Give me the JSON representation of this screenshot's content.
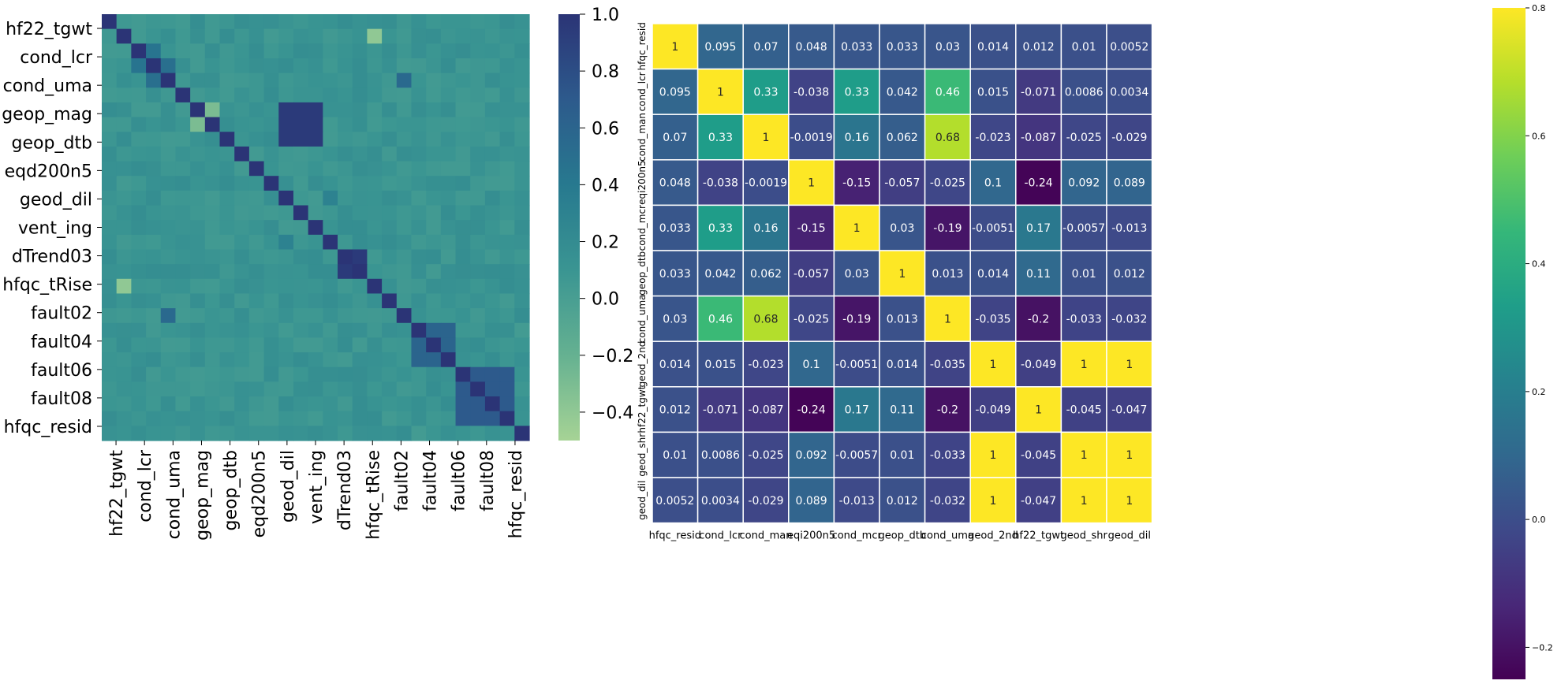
{
  "chart_data": [
    {
      "type": "heatmap",
      "title": "",
      "colormap": "crest",
      "colors": [
        "#a6d395",
        "#65b191",
        "#3a9592",
        "#27798f",
        "#2d5a8c",
        "#2b3476"
      ],
      "value_range": [
        -0.5,
        1.0
      ],
      "colorbar_ticks": [
        "1.0",
        "0.8",
        "0.6",
        "0.4",
        "0.2",
        "0.0",
        "−0.2",
        "−0.4"
      ],
      "colorbar_tick_values": [
        1.0,
        0.8,
        0.6,
        0.4,
        0.2,
        0.0,
        -0.2,
        -0.4
      ],
      "row_tick_labels": [
        "hf22_tgwt",
        "cond_lcr",
        "cond_uma",
        "geop_mag",
        "geop_dtb",
        "eqd200n5",
        "geod_dil",
        "vent_ing",
        "dTrend03",
        "hfqc_tRise",
        "fault02",
        "fault04",
        "fault06",
        "fault08",
        "hfqc_resid"
      ],
      "col_tick_labels": [
        "hf22_tgwt",
        "cond_lcr",
        "cond_uma",
        "geop_mag",
        "geop_dtb",
        "eqd200n5",
        "geod_dil",
        "vent_ing",
        "dTrend03",
        "hfqc_tRise",
        "fault02",
        "fault04",
        "fault06",
        "fault08",
        "hfqc_resid"
      ],
      "rows": 29,
      "cols": 29,
      "blocks": [
        {
          "r0": 6,
          "r1": 8,
          "c0": 12,
          "c1": 14,
          "value": 0.95
        },
        {
          "r0": 16,
          "r1": 17,
          "c0": 16,
          "c1": 17,
          "value": 0.95
        },
        {
          "r0": 21,
          "r1": 23,
          "c0": 21,
          "c1": 23,
          "value": 0.6
        },
        {
          "r0": 24,
          "r1": 27,
          "c0": 24,
          "c1": 27,
          "value": 0.7
        }
      ],
      "highlights": [
        {
          "r": 1,
          "c": 18,
          "value": -0.4
        },
        {
          "r": 18,
          "c": 1,
          "value": -0.4
        },
        {
          "r": 4,
          "c": 20,
          "value": 0.55
        },
        {
          "r": 20,
          "c": 4,
          "value": 0.55
        },
        {
          "r": 3,
          "c": 4,
          "value": 0.5
        },
        {
          "r": 4,
          "c": 3,
          "value": 0.5
        },
        {
          "r": 2,
          "c": 3,
          "value": 0.45
        },
        {
          "r": 3,
          "c": 2,
          "value": 0.45
        },
        {
          "r": 6,
          "c": 7,
          "value": -0.3
        },
        {
          "r": 7,
          "c": 6,
          "value": -0.3
        },
        {
          "r": 12,
          "c": 15,
          "value": 0.3
        },
        {
          "r": 15,
          "c": 12,
          "value": 0.3
        }
      ]
    },
    {
      "type": "heatmap",
      "title": "",
      "colormap": "viridis",
      "colors": [
        "#440154",
        "#482878",
        "#3e4989",
        "#31688e",
        "#26828e",
        "#1f9e89",
        "#35b779",
        "#6ece58",
        "#b5de2b",
        "#fde725"
      ],
      "value_range": [
        -0.25,
        0.8
      ],
      "colorbar_ticks": [
        "0.8",
        "0.6",
        "0.4",
        "0.2",
        "0.0",
        "−0.2"
      ],
      "colorbar_tick_values": [
        0.8,
        0.6,
        0.4,
        0.2,
        0.0,
        -0.2
      ],
      "row_labels": [
        "hfqc_resid",
        "cond_lcr",
        "cond_man",
        "eqi200n5",
        "cond_mcr",
        "geop_dtb",
        "cond_uma",
        "geod_2nd",
        "hf22_tgwt",
        "geod_shr",
        "geod_dil"
      ],
      "col_labels": [
        "hfqc_resid",
        "cond_lcr",
        "cond_man",
        "eqi200n5",
        "cond_mcr",
        "geop_dtb",
        "cond_uma",
        "geod_2nd",
        "hf22_tgwt",
        "geod_shr",
        "geod_dil"
      ],
      "cell_labels": [
        [
          "1",
          "0.095",
          "0.07",
          "0.048",
          "0.033",
          "0.033",
          "0.03",
          "0.014",
          "0.012",
          "0.01",
          "0.0052"
        ],
        [
          "0.095",
          "1",
          "0.33",
          "-0.038",
          "0.33",
          "0.042",
          "0.46",
          "0.015",
          "-0.071",
          "0.0086",
          "0.0034"
        ],
        [
          "0.07",
          "0.33",
          "1",
          "-0.0019",
          "0.16",
          "0.062",
          "0.68",
          "-0.023",
          "-0.087",
          "-0.025",
          "-0.029"
        ],
        [
          "0.048",
          "-0.038",
          "-0.0019",
          "1",
          "-0.15",
          "-0.057",
          "-0.025",
          "0.1",
          "-0.24",
          "0.092",
          "0.089"
        ],
        [
          "0.033",
          "0.33",
          "0.16",
          "-0.15",
          "1",
          "0.03",
          "-0.19",
          "-0.0051",
          "0.17",
          "-0.0057",
          "-0.013"
        ],
        [
          "0.033",
          "0.042",
          "0.062",
          "-0.057",
          "0.03",
          "1",
          "0.013",
          "0.014",
          "0.11",
          "0.01",
          "0.012"
        ],
        [
          "0.03",
          "0.46",
          "0.68",
          "-0.025",
          "-0.19",
          "0.013",
          "1",
          "-0.035",
          "-0.2",
          "-0.033",
          "-0.032"
        ],
        [
          "0.014",
          "0.015",
          "-0.023",
          "0.1",
          "-0.0051",
          "0.014",
          "-0.035",
          "1",
          "-0.049",
          "1",
          "1"
        ],
        [
          "0.012",
          "-0.071",
          "-0.087",
          "-0.24",
          "0.17",
          "0.11",
          "-0.2",
          "-0.049",
          "1",
          "-0.045",
          "-0.047"
        ],
        [
          "0.01",
          "0.0086",
          "-0.025",
          "0.092",
          "-0.0057",
          "0.01",
          "-0.033",
          "1",
          "-0.045",
          "1",
          "1"
        ],
        [
          "0.0052",
          "0.0034",
          "-0.029",
          "0.089",
          "-0.013",
          "0.012",
          "-0.032",
          "1",
          "-0.047",
          "1",
          "1"
        ]
      ]
    }
  ]
}
